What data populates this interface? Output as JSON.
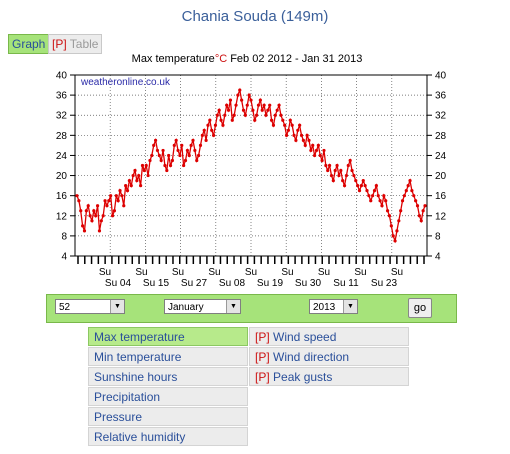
{
  "page_title": "Chania Souda (149m)",
  "tabs": {
    "graph": "Graph",
    "table_prefix": "[P]",
    "table": "Table"
  },
  "controls": {
    "count_value": "52",
    "month_value": "January",
    "year_value": "2013",
    "go_label": "go"
  },
  "menu_left": [
    "Max temperature",
    "Min temperature",
    "Sunshine hours",
    "Precipitation",
    "Pressure",
    "Relative humidity"
  ],
  "menu_right": [
    {
      "prefix": "[P]",
      "label": "Wind speed"
    },
    {
      "prefix": "[P]",
      "label": "Wind direction"
    },
    {
      "prefix": "[P]",
      "label": "Peak gusts"
    }
  ],
  "chart_data": {
    "type": "line",
    "title_prefix": "Max temperature",
    "title_unit": "°C",
    "title_period": "Feb 02 2012 - Jan 31 2013",
    "watermark": "weatheronline.co.uk",
    "ylim": [
      4,
      40
    ],
    "y_ticks": [
      4,
      8,
      12,
      16,
      20,
      24,
      28,
      32,
      36,
      40
    ],
    "grid": true,
    "series_color": "#dd0000",
    "x_label_top": [
      "Su",
      "Su",
      "Su",
      "Su",
      "Su",
      "Su",
      "Su",
      "Su",
      "Su"
    ],
    "x_label_bottom": [
      "Su 04",
      "Su 15",
      "Su 27",
      "Su 08",
      "Su 19",
      "Su 30",
      "Su 11",
      "Su 23"
    ],
    "values": [
      16,
      15,
      13,
      10,
      9,
      13,
      14,
      12,
      11,
      13,
      12,
      14,
      9,
      11,
      12,
      15,
      14,
      15,
      16,
      12,
      13,
      16,
      15,
      17,
      16,
      14,
      18,
      17,
      19,
      18,
      20,
      21,
      19,
      20,
      18,
      22,
      21,
      22,
      20,
      23,
      24,
      26,
      27,
      25,
      24,
      23,
      25,
      22,
      21,
      24,
      22,
      23,
      26,
      27,
      25,
      24,
      26,
      22,
      23,
      25,
      24,
      26,
      27,
      25,
      23,
      24,
      26,
      28,
      29,
      27,
      30,
      31,
      29,
      28,
      30,
      32,
      33,
      31,
      30,
      32,
      34,
      33,
      35,
      31,
      32,
      34,
      36,
      37,
      35,
      33,
      32,
      34,
      36,
      35,
      33,
      31,
      32,
      34,
      35,
      33,
      34,
      32,
      33,
      34,
      31,
      30,
      32,
      33,
      34,
      32,
      31,
      30,
      28,
      29,
      31,
      30,
      28,
      27,
      29,
      30,
      28,
      27,
      26,
      28,
      27,
      25,
      26,
      24,
      25,
      26,
      24,
      23,
      25,
      22,
      21,
      22,
      20,
      19,
      21,
      22,
      20,
      21,
      19,
      18,
      20,
      22,
      23,
      21,
      20,
      19,
      18,
      17,
      18,
      19,
      18,
      17,
      16,
      15,
      16,
      17,
      18,
      16,
      15,
      14,
      16,
      15,
      13,
      12,
      10,
      8,
      7,
      9,
      11,
      13,
      15,
      16,
      17,
      18,
      19,
      17,
      16,
      15,
      14,
      12,
      11,
      13,
      14
    ]
  }
}
